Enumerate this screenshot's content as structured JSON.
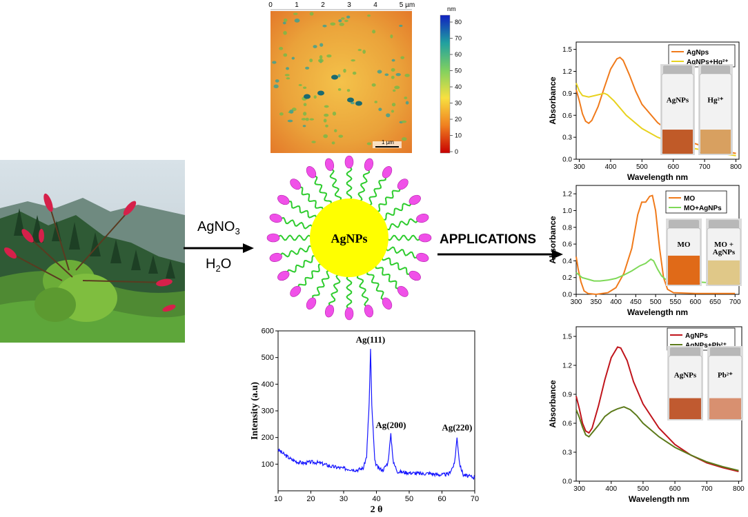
{
  "reaction": {
    "reagent": "AgNO3",
    "reagent_main": "AgNO",
    "reagent_sub": "3",
    "solvent": "H2O",
    "solvent_a": "H",
    "solvent_sub": "2",
    "solvent_b": "O",
    "applications_label": "APPLICATIONS"
  },
  "nanoparticle": {
    "label": "AgNPs"
  },
  "afm": {
    "x_ticks": [
      "0",
      "1",
      "2",
      "3",
      "4",
      "5 µm"
    ],
    "scale_unit": "nm",
    "scale_ticks": [
      "80",
      "70",
      "60",
      "50",
      "40",
      "30",
      "20",
      "10",
      "0"
    ],
    "scalebar_label": "1 µm"
  },
  "colors": {
    "orange": "#f07a1a",
    "yellow": "#e8d21e",
    "green": "#7ed957",
    "red": "#c0141b",
    "olive": "#5c7a1a",
    "blue": "#1414ff",
    "ligand_head": "#f050e8",
    "ligand_tail": "#2ecc2e",
    "core": "#ffff00"
  },
  "chart_data": [
    {
      "type": "line",
      "xlabel": "2 θ",
      "ylabel": "Intensity (a.u)",
      "xlim": [
        10,
        70
      ],
      "ylim": [
        0,
        600
      ],
      "x_ticks": [
        "10",
        "20",
        "30",
        "40",
        "50",
        "60",
        "70"
      ],
      "y_ticks": [
        "100",
        "200",
        "300",
        "400",
        "500",
        "600"
      ],
      "annotations": [
        {
          "text": "Ag(111)",
          "x": 38.2,
          "y": 530
        },
        {
          "text": "Ag(200)",
          "x": 44.4,
          "y": 210
        },
        {
          "text": "Ag(220)",
          "x": 64.6,
          "y": 200
        }
      ],
      "series": [
        {
          "points": [
            [
              10,
              155
            ],
            [
              12,
              135
            ],
            [
              14,
              118
            ],
            [
              16,
              108
            ],
            [
              18,
              104
            ],
            [
              20,
              108
            ],
            [
              22,
              106
            ],
            [
              24,
              100
            ],
            [
              26,
              92
            ],
            [
              28,
              88
            ],
            [
              30,
              84
            ],
            [
              32,
              82
            ],
            [
              34,
              78
            ],
            [
              36,
              85
            ],
            [
              37,
              130
            ],
            [
              37.8,
              330
            ],
            [
              38.2,
              530
            ],
            [
              38.6,
              320
            ],
            [
              39.5,
              110
            ],
            [
              40.5,
              85
            ],
            [
              42,
              78
            ],
            [
              43.5,
              105
            ],
            [
              44.4,
              210
            ],
            [
              45.2,
              105
            ],
            [
              46.5,
              72
            ],
            [
              48,
              70
            ],
            [
              50,
              68
            ],
            [
              52,
              66
            ],
            [
              54,
              64
            ],
            [
              56,
              66
            ],
            [
              58,
              62
            ],
            [
              60,
              60
            ],
            [
              62,
              62
            ],
            [
              63.8,
              100
            ],
            [
              64.6,
              200
            ],
            [
              65.4,
              100
            ],
            [
              66.5,
              60
            ],
            [
              68,
              55
            ],
            [
              70,
              50
            ]
          ]
        }
      ]
    },
    {
      "type": "line",
      "xlabel": "Wavelength nm",
      "ylabel": "Absorbance",
      "xlim": [
        290,
        810
      ],
      "ylim": [
        0,
        1.6
      ],
      "x_ticks": [
        "300",
        "400",
        "500",
        "600",
        "700",
        "800"
      ],
      "y_ticks": [
        "0.0",
        "0.3",
        "0.6",
        "0.9",
        "1.2",
        "1.5"
      ],
      "series": [
        {
          "name": "AgNps",
          "points": [
            [
              290,
              0.95
            ],
            [
              300,
              0.8
            ],
            [
              310,
              0.62
            ],
            [
              320,
              0.52
            ],
            [
              330,
              0.49
            ],
            [
              340,
              0.53
            ],
            [
              360,
              0.72
            ],
            [
              380,
              0.98
            ],
            [
              400,
              1.23
            ],
            [
              420,
              1.37
            ],
            [
              430,
              1.39
            ],
            [
              440,
              1.35
            ],
            [
              460,
              1.15
            ],
            [
              480,
              0.93
            ],
            [
              500,
              0.75
            ],
            [
              550,
              0.5
            ],
            [
              600,
              0.34
            ],
            [
              650,
              0.24
            ],
            [
              700,
              0.17
            ],
            [
              750,
              0.12
            ],
            [
              800,
              0.08
            ]
          ]
        },
        {
          "name": "AgNPs+Hg²⁺",
          "points": [
            [
              290,
              1.04
            ],
            [
              300,
              0.93
            ],
            [
              310,
              0.87
            ],
            [
              330,
              0.85
            ],
            [
              360,
              0.88
            ],
            [
              380,
              0.9
            ],
            [
              390,
              0.88
            ],
            [
              410,
              0.8
            ],
            [
              450,
              0.6
            ],
            [
              500,
              0.42
            ],
            [
              550,
              0.3
            ],
            [
              600,
              0.22
            ],
            [
              650,
              0.16
            ],
            [
              700,
              0.12
            ],
            [
              750,
              0.08
            ],
            [
              800,
              0.05
            ]
          ]
        }
      ]
    },
    {
      "type": "line",
      "xlabel": "Wavelength nm",
      "ylabel": "Absorbance",
      "xlim": [
        300,
        710
      ],
      "ylim": [
        0,
        1.3
      ],
      "x_ticks": [
        "300",
        "350",
        "400",
        "450",
        "500",
        "550",
        "600",
        "650",
        "700"
      ],
      "y_ticks": [
        "0.0",
        "0.2",
        "0.4",
        "0.6",
        "0.8",
        "1.0",
        "1.2"
      ],
      "series": [
        {
          "name": "MO",
          "points": [
            [
              300,
              0.45
            ],
            [
              305,
              0.3
            ],
            [
              312,
              0.15
            ],
            [
              320,
              0.04
            ],
            [
              330,
              0.01
            ],
            [
              350,
              0.0
            ],
            [
              380,
              0.02
            ],
            [
              400,
              0.08
            ],
            [
              420,
              0.25
            ],
            [
              440,
              0.55
            ],
            [
              455,
              0.95
            ],
            [
              465,
              1.1
            ],
            [
              475,
              1.1
            ],
            [
              485,
              1.17
            ],
            [
              492,
              1.18
            ],
            [
              500,
              1.0
            ],
            [
              510,
              0.55
            ],
            [
              520,
              0.2
            ],
            [
              530,
              0.06
            ],
            [
              545,
              0.02
            ],
            [
              600,
              0.01
            ],
            [
              700,
              0.01
            ]
          ]
        },
        {
          "name": "MO+AgNPs",
          "points": [
            [
              300,
              0.26
            ],
            [
              315,
              0.2
            ],
            [
              330,
              0.18
            ],
            [
              345,
              0.16
            ],
            [
              360,
              0.16
            ],
            [
              380,
              0.17
            ],
            [
              400,
              0.19
            ],
            [
              420,
              0.23
            ],
            [
              440,
              0.28
            ],
            [
              460,
              0.34
            ],
            [
              475,
              0.37
            ],
            [
              488,
              0.42
            ],
            [
              495,
              0.4
            ],
            [
              505,
              0.3
            ],
            [
              515,
              0.22
            ],
            [
              525,
              0.18
            ],
            [
              540,
              0.16
            ],
            [
              600,
              0.15
            ],
            [
              700,
              0.12
            ]
          ]
        }
      ]
    },
    {
      "type": "line",
      "xlabel": "Wavelength nm",
      "ylabel": "Absorbance",
      "xlim": [
        290,
        810
      ],
      "ylim": [
        0,
        1.6
      ],
      "x_ticks": [
        "300",
        "400",
        "500",
        "600",
        "700",
        "800"
      ],
      "y_ticks": [
        "0.0",
        "0.3",
        "0.6",
        "0.9",
        "1.2",
        "1.5"
      ],
      "series": [
        {
          "name": "AgNPs",
          "points": [
            [
              290,
              0.88
            ],
            [
              300,
              0.75
            ],
            [
              310,
              0.6
            ],
            [
              320,
              0.52
            ],
            [
              330,
              0.5
            ],
            [
              340,
              0.55
            ],
            [
              360,
              0.78
            ],
            [
              380,
              1.05
            ],
            [
              400,
              1.28
            ],
            [
              420,
              1.39
            ],
            [
              430,
              1.38
            ],
            [
              450,
              1.25
            ],
            [
              470,
              1.03
            ],
            [
              500,
              0.8
            ],
            [
              550,
              0.55
            ],
            [
              600,
              0.38
            ],
            [
              650,
              0.27
            ],
            [
              700,
              0.19
            ],
            [
              750,
              0.14
            ],
            [
              800,
              0.1
            ]
          ]
        },
        {
          "name": "AgNPs+Pb²⁺",
          "points": [
            [
              290,
              0.74
            ],
            [
              300,
              0.66
            ],
            [
              310,
              0.56
            ],
            [
              320,
              0.48
            ],
            [
              330,
              0.46
            ],
            [
              340,
              0.5
            ],
            [
              360,
              0.58
            ],
            [
              380,
              0.67
            ],
            [
              400,
              0.72
            ],
            [
              420,
              0.75
            ],
            [
              440,
              0.77
            ],
            [
              460,
              0.74
            ],
            [
              480,
              0.68
            ],
            [
              500,
              0.6
            ],
            [
              550,
              0.46
            ],
            [
              600,
              0.35
            ],
            [
              650,
              0.27
            ],
            [
              700,
              0.2
            ],
            [
              750,
              0.15
            ],
            [
              800,
              0.11
            ]
          ]
        }
      ]
    }
  ],
  "vials": {
    "hg": [
      "AgNPs",
      "Hg²⁺"
    ],
    "mo": [
      "MO",
      "MO +",
      "AgNPs"
    ],
    "pb": [
      "AgNPs",
      "Pb²⁺"
    ]
  }
}
